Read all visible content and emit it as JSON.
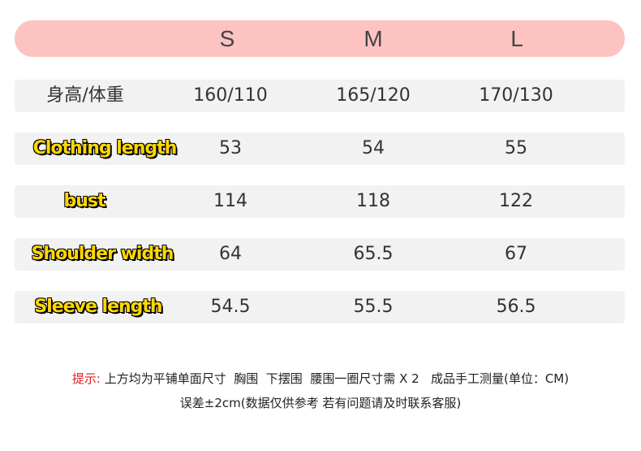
{
  "header": {
    "sizes": [
      "S",
      "M",
      "L"
    ]
  },
  "rows": [
    {
      "label": "身高/体重",
      "values": [
        "160/110",
        "165/120",
        "170/130"
      ]
    },
    {
      "label": "Clothing length",
      "values": [
        "53",
        "54",
        "55"
      ]
    },
    {
      "label": "bust",
      "values": [
        "114",
        "118",
        "122"
      ]
    },
    {
      "label": "Shoulder width",
      "values": [
        "64",
        "65.5",
        "67"
      ]
    },
    {
      "label": "Sleeve length",
      "values": [
        "54.5",
        "55.5",
        "56.5"
      ]
    }
  ],
  "notes": {
    "prefix": "提示:",
    "line1": " 上方均为平铺单面尺寸  胸围  下摆围  腰围一圈尺寸需 X 2   成品手工测量(单位：CM)",
    "line2": "误差±2cm(数据仅供参考  若有问题请及时联系客服)"
  },
  "colors": {
    "header": "#fcc3c1",
    "row": "#f2f2f2",
    "label_highlight": "#ffd800",
    "note_prefix": "#e02020"
  }
}
